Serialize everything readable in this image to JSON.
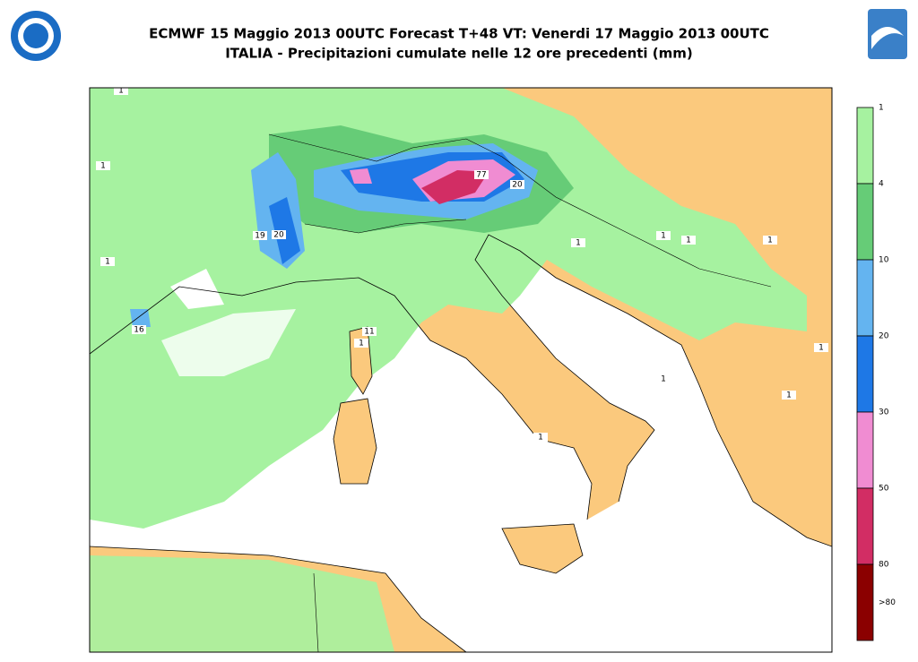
{
  "header": {
    "title": "ECMWF 15 Maggio 2013 00UTC Forecast T+48 VT: Venerdi 17 Maggio 2013 00UTC",
    "subtitle": "ITALIA - Precipitazioni cumulate nelle 12 ore precedenti (mm)"
  },
  "legend": {
    "labels": [
      "1",
      "4",
      "10",
      "20",
      "30",
      "50",
      "80",
      ">80"
    ],
    "colors": [
      "#a6f2a0",
      "#66cc77",
      "#64b4f0",
      "#1e78e6",
      "#f08cd2",
      "#d22d64",
      "#8b0000"
    ]
  },
  "map": {
    "labels": [
      "19",
      "20",
      "16",
      "11",
      "77",
      "20",
      "1",
      "1",
      "1",
      "1",
      "1",
      "1",
      "1",
      "1",
      "1",
      "1",
      "1",
      "1"
    ]
  }
}
